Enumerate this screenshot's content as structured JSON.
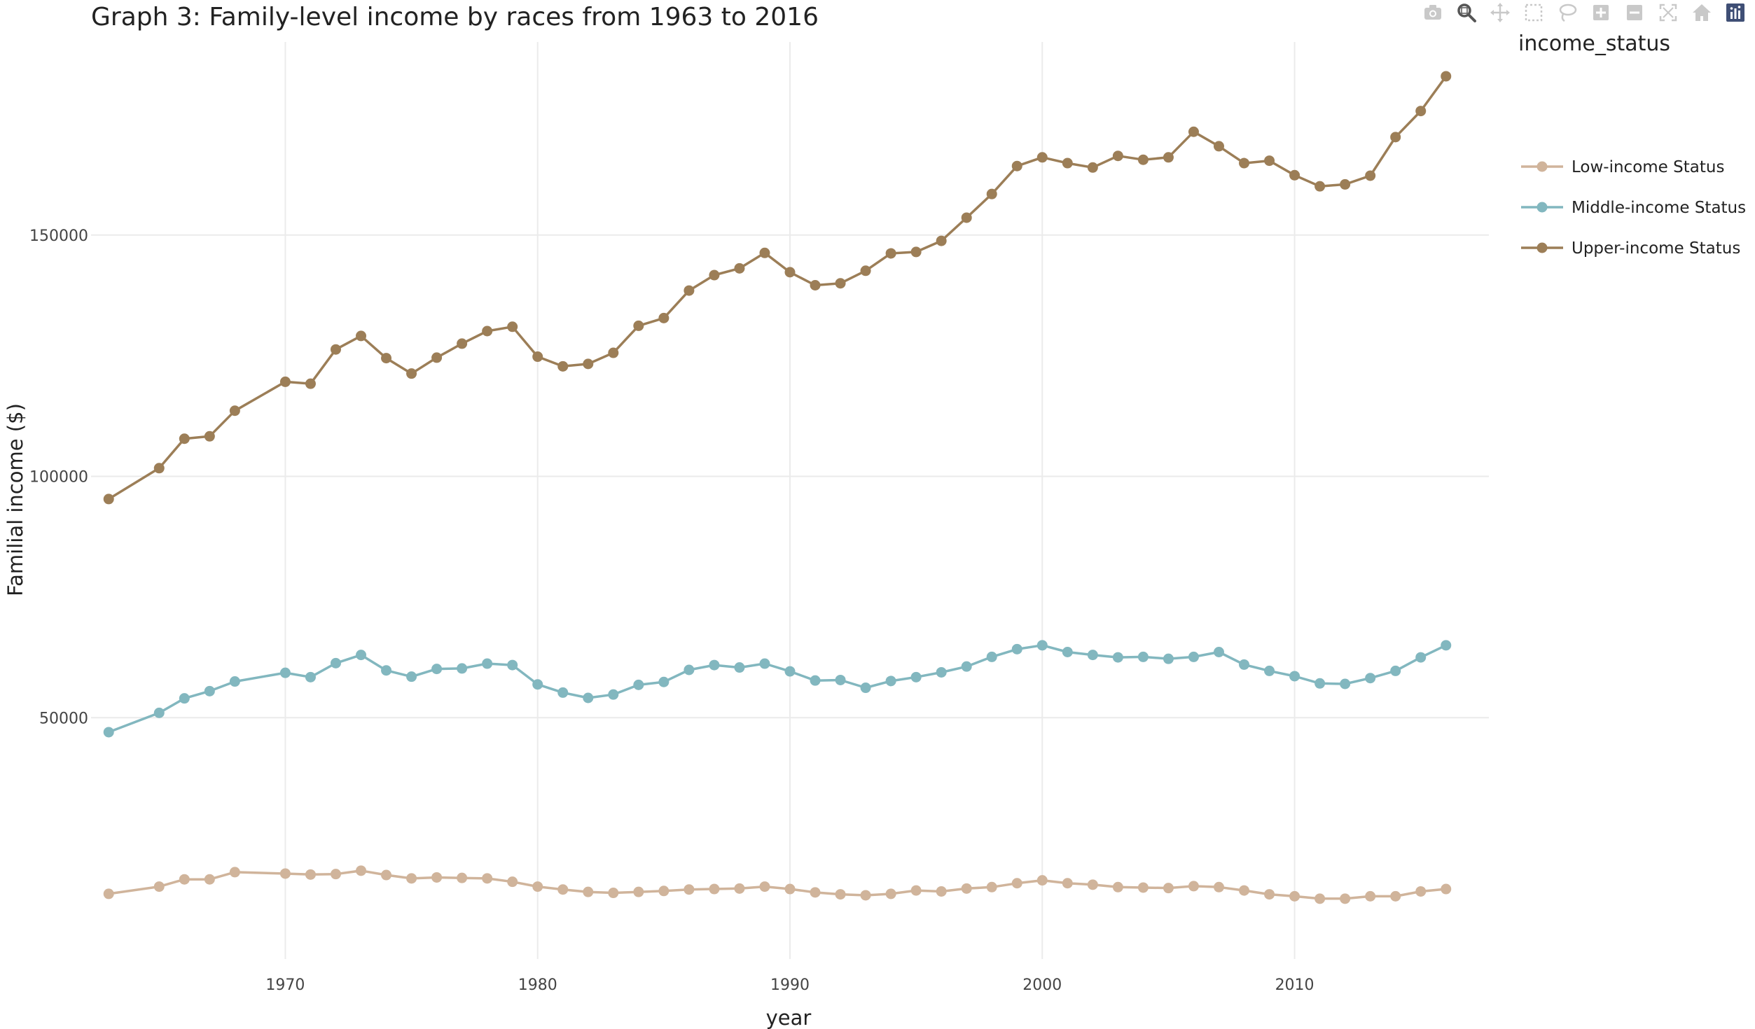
{
  "modebar": {
    "buttons": [
      {
        "name": "camera-icon",
        "icon": "camera",
        "color": "#c9c9c9"
      },
      {
        "name": "zoom-icon",
        "icon": "zoom",
        "color": "#555555"
      },
      {
        "name": "pan-icon",
        "icon": "pan",
        "color": "#c9c9c9"
      },
      {
        "name": "box-select-icon",
        "icon": "box",
        "color": "#c9c9c9"
      },
      {
        "name": "lasso-icon",
        "icon": "lasso",
        "color": "#c9c9c9"
      },
      {
        "name": "zoom-in-icon",
        "icon": "plus",
        "color": "#c9c9c9"
      },
      {
        "name": "zoom-out-icon",
        "icon": "minus",
        "color": "#c9c9c9"
      },
      {
        "name": "autoscale-icon",
        "icon": "autoscale",
        "color": "#c9c9c9"
      },
      {
        "name": "reset-axes-icon",
        "icon": "home",
        "color": "#c9c9c9"
      },
      {
        "name": "plotly-logo-icon",
        "icon": "logo",
        "color": "#3f4f75"
      }
    ]
  },
  "chart_data": {
    "type": "line",
    "title": "Graph 3: Family-level income by races from 1963 to 2016",
    "xlabel": "year",
    "ylabel": "Familial income ($)",
    "xlim": [
      1962.3,
      2017.7
    ],
    "ylim": [
      0,
      190000
    ],
    "x_ticks": [
      1970,
      1980,
      1990,
      2000,
      2010
    ],
    "y_ticks": [
      50000,
      100000,
      150000
    ],
    "grid": true,
    "legend_title": "income_status",
    "legend_position": "top-right",
    "x": [
      1963,
      1965,
      1966,
      1967,
      1968,
      1970,
      1971,
      1972,
      1973,
      1974,
      1975,
      1976,
      1977,
      1978,
      1979,
      1980,
      1981,
      1982,
      1983,
      1984,
      1985,
      1986,
      1987,
      1988,
      1989,
      1990,
      1991,
      1992,
      1993,
      1994,
      1995,
      1996,
      1997,
      1998,
      1999,
      2000,
      2001,
      2002,
      2003,
      2004,
      2005,
      2006,
      2007,
      2008,
      2009,
      2010,
      2011,
      2012,
      2013,
      2014,
      2015,
      2016
    ],
    "series": [
      {
        "name": "Low-income Status",
        "color": "#d0b49b",
        "values": [
          13500,
          15000,
          16500,
          16500,
          18000,
          17700,
          17500,
          17600,
          18300,
          17400,
          16700,
          16900,
          16800,
          16700,
          16000,
          15000,
          14400,
          13900,
          13700,
          13900,
          14100,
          14400,
          14500,
          14600,
          15000,
          14500,
          13800,
          13400,
          13200,
          13500,
          14200,
          14000,
          14600,
          14900,
          15700,
          16300,
          15700,
          15400,
          14900,
          14800,
          14700,
          15100,
          14900,
          14200,
          13400,
          13000,
          12500,
          12500,
          13000,
          13000,
          14000,
          14500
        ]
      },
      {
        "name": "Middle-income Status",
        "color": "#82b7bf",
        "values": [
          47000,
          51000,
          54000,
          55500,
          57500,
          59300,
          58400,
          61300,
          63000,
          59800,
          58500,
          60100,
          60200,
          61200,
          60900,
          56900,
          55200,
          54100,
          54800,
          56800,
          57400,
          59900,
          60900,
          60400,
          61200,
          59600,
          57700,
          57800,
          56200,
          57600,
          58400,
          59400,
          60600,
          62600,
          64200,
          65000,
          63600,
          63000,
          62500,
          62600,
          62200,
          62600,
          63600,
          61000,
          59700,
          58600,
          57100,
          57000,
          58200,
          59700,
          62500,
          65000
        ]
      },
      {
        "name": "Upper-income Status",
        "color": "#9c7e57",
        "values": [
          95300,
          101700,
          107800,
          108300,
          113600,
          119600,
          119200,
          126300,
          129100,
          124500,
          121300,
          124600,
          127500,
          130100,
          131000,
          124800,
          122800,
          123300,
          125600,
          131200,
          132800,
          138500,
          141700,
          143100,
          146300,
          142300,
          139600,
          140000,
          142600,
          146200,
          146500,
          148800,
          153600,
          158500,
          164300,
          166100,
          164900,
          164000,
          166400,
          165600,
          166100,
          171400,
          168400,
          164900,
          165400,
          162400,
          160100,
          160500,
          162300,
          170300,
          175700,
          182900
        ]
      }
    ]
  }
}
